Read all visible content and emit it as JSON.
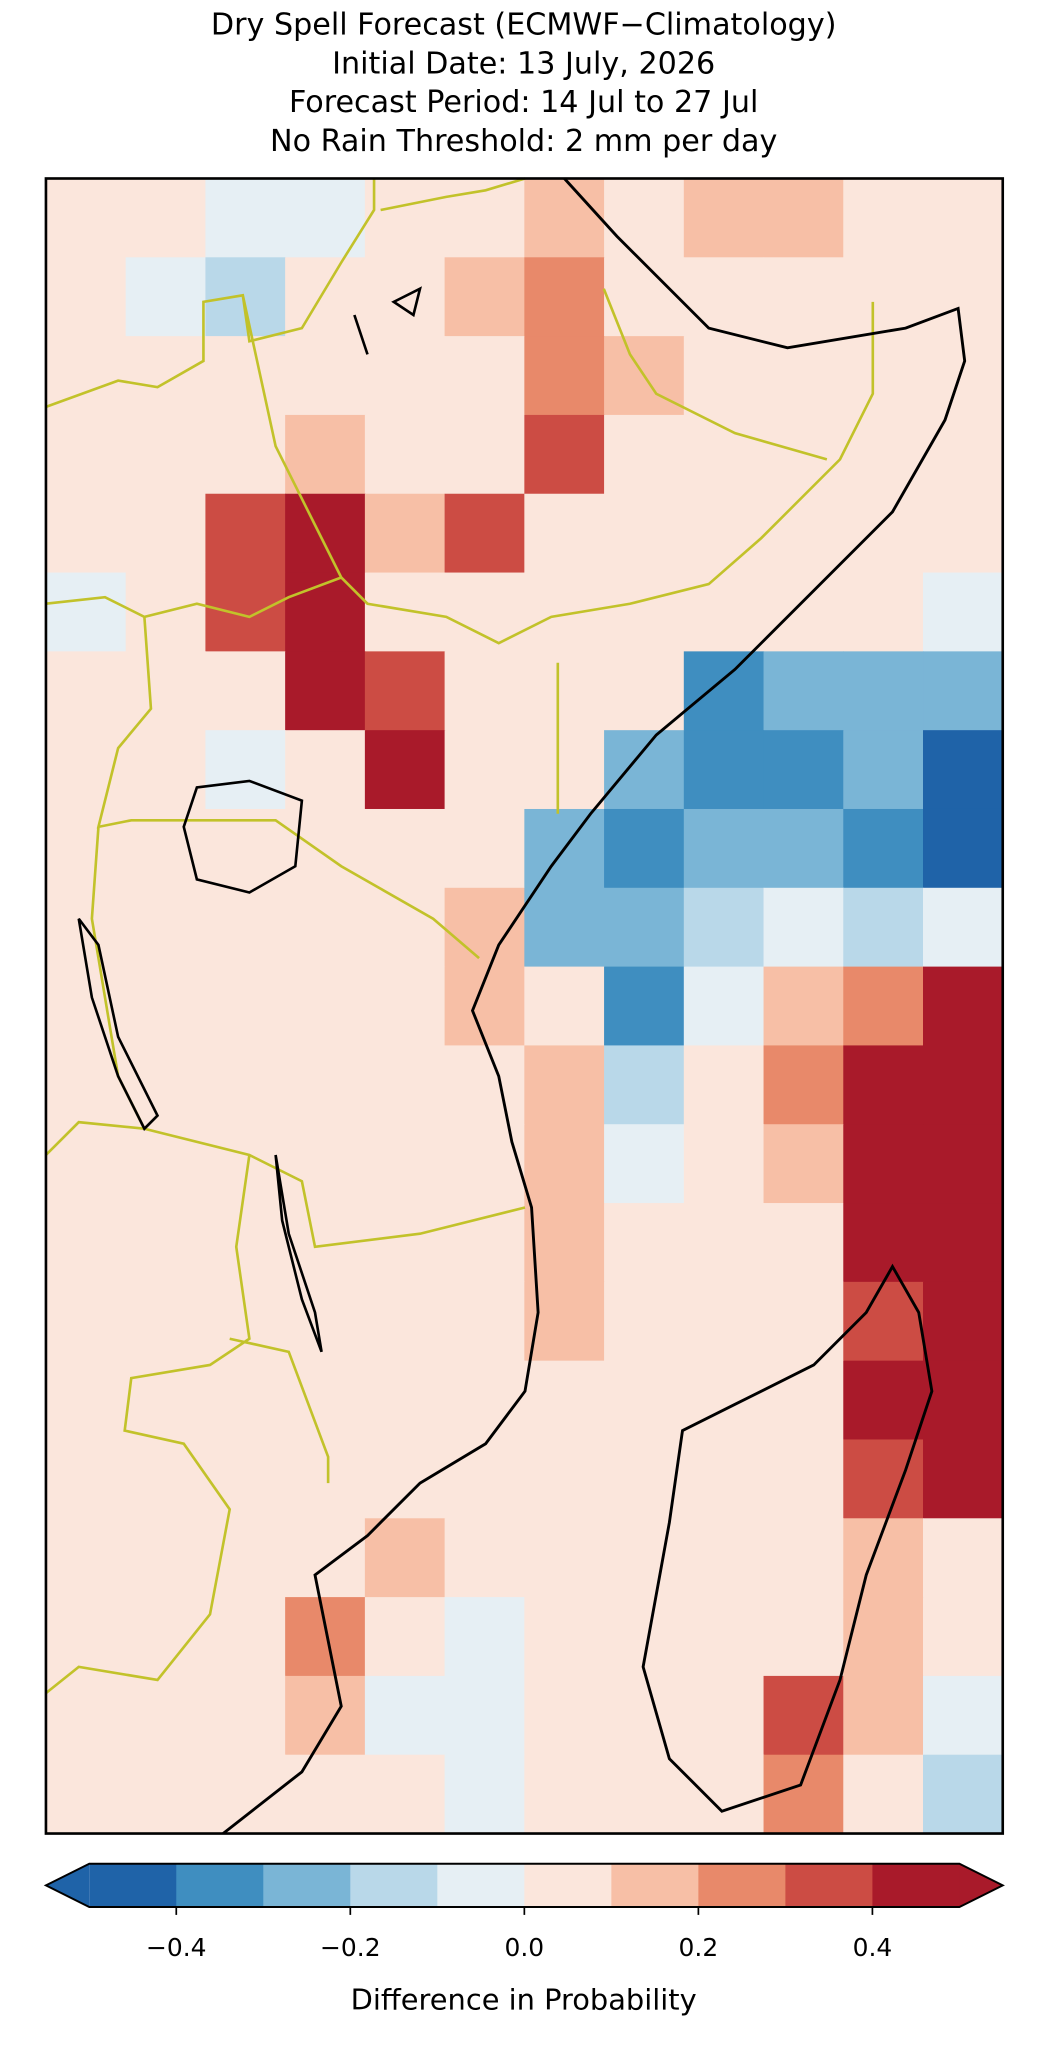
{
  "chart_data": {
    "type": "map",
    "title": [
      "Dry Spell Forecast (ECMWF−Climatology)",
      "Initial Date: 13 July, 2026",
      "Forecast Period: 14 Jul to 27 Jul",
      "No Rain Threshold: 2 mm per day"
    ],
    "grid": [
      [
        0.05,
        0.05,
        -0.05,
        -0.05,
        0.05,
        0.05,
        0.15,
        0.05,
        0.15,
        0.15,
        0.05,
        0.05
      ],
      [
        0.05,
        -0.05,
        -0.15,
        0.05,
        0.05,
        0.15,
        0.25,
        0.05,
        0.05,
        0.05,
        0.05,
        0.05
      ],
      [
        0.05,
        0.05,
        0.05,
        0.05,
        0.05,
        0.05,
        0.25,
        0.15,
        0.05,
        0.05,
        0.05,
        0.05
      ],
      [
        0.05,
        0.05,
        0.05,
        0.15,
        0.05,
        0.05,
        0.35,
        0.05,
        0.05,
        0.05,
        0.05,
        0.05
      ],
      [
        0.05,
        0.05,
        0.35,
        0.45,
        0.15,
        0.35,
        0.05,
        0.05,
        0.05,
        0.05,
        0.05,
        0.05
      ],
      [
        -0.05,
        0.05,
        0.35,
        0.45,
        0.05,
        0.05,
        0.05,
        0.05,
        0.05,
        0.05,
        0.05,
        -0.05
      ],
      [
        0.05,
        0.05,
        0.05,
        0.45,
        0.35,
        0.05,
        0.05,
        0.05,
        -0.35,
        -0.25,
        -0.25,
        -0.25
      ],
      [
        0.05,
        0.05,
        -0.05,
        0.05,
        0.45,
        0.05,
        0.05,
        -0.25,
        -0.35,
        -0.35,
        -0.25,
        -0.45
      ],
      [
        0.05,
        0.05,
        0.05,
        0.05,
        0.05,
        0.05,
        -0.25,
        -0.35,
        -0.25,
        -0.25,
        -0.35,
        -0.45
      ],
      [
        0.05,
        0.05,
        0.05,
        0.05,
        0.05,
        0.15,
        -0.25,
        -0.25,
        -0.15,
        -0.05,
        -0.15,
        -0.05
      ],
      [
        0.05,
        0.05,
        0.05,
        0.05,
        0.05,
        0.15,
        0.05,
        -0.35,
        -0.05,
        0.15,
        0.25,
        0.45
      ],
      [
        0.05,
        0.05,
        0.05,
        0.05,
        0.05,
        0.05,
        0.15,
        -0.15,
        0.05,
        0.25,
        0.45,
        0.45
      ],
      [
        0.05,
        0.05,
        0.05,
        0.05,
        0.05,
        0.05,
        0.15,
        -0.05,
        0.05,
        0.15,
        0.45,
        0.45
      ],
      [
        0.05,
        0.05,
        0.05,
        0.05,
        0.05,
        0.05,
        0.15,
        0.05,
        0.05,
        0.05,
        0.45,
        0.45
      ],
      [
        0.05,
        0.05,
        0.05,
        0.05,
        0.05,
        0.05,
        0.15,
        0.05,
        0.05,
        0.05,
        0.35,
        0.45
      ],
      [
        0.05,
        0.05,
        0.05,
        0.05,
        0.05,
        0.05,
        0.05,
        0.05,
        0.05,
        0.05,
        0.45,
        0.45
      ],
      [
        0.05,
        0.05,
        0.05,
        0.05,
        0.05,
        0.05,
        0.05,
        0.05,
        0.05,
        0.05,
        0.35,
        0.45
      ],
      [
        0.05,
        0.05,
        0.05,
        0.05,
        0.15,
        0.05,
        0.05,
        0.05,
        0.05,
        0.05,
        0.15,
        0.05
      ],
      [
        0.05,
        0.05,
        0.05,
        0.25,
        0.05,
        -0.05,
        0.05,
        0.05,
        0.05,
        0.05,
        0.15,
        0.05
      ],
      [
        0.05,
        0.05,
        0.05,
        0.15,
        -0.05,
        -0.05,
        0.05,
        0.05,
        0.05,
        0.35,
        0.15,
        -0.05
      ],
      [
        0.05,
        0.05,
        0.05,
        0.05,
        0.05,
        -0.05,
        0.05,
        0.05,
        0.05,
        0.25,
        0.05,
        -0.15
      ]
    ],
    "colorbar": {
      "label": "Difference in Probability",
      "bounds": [
        -0.5,
        -0.4,
        -0.3,
        -0.2,
        -0.1,
        0,
        0.1,
        0.2,
        0.3,
        0.4,
        0.5
      ],
      "colors": [
        "#1f63a8",
        "#3f8ec0",
        "#7ab5d6",
        "#b9d8e9",
        "#e6eff4",
        "#fbe6dc",
        "#f7bfa6",
        "#e8896a",
        "#cc4c44",
        "#a91a2a"
      ],
      "ticks": [
        {
          "value": -0.4,
          "label": "−0.4"
        },
        {
          "value": -0.2,
          "label": "−0.2"
        },
        {
          "value": 0,
          "label": "0.0"
        },
        0.2,
        0.4
      ]
    }
  }
}
